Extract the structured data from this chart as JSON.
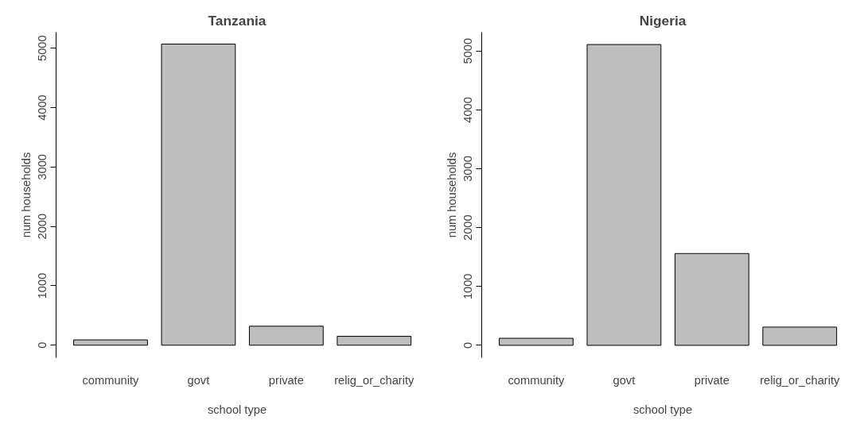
{
  "chart_data": [
    {
      "type": "bar",
      "title": "Tanzania",
      "xlabel": "school type",
      "ylabel": "num households",
      "categories": [
        "community",
        "govt",
        "private",
        "relig_or_charity"
      ],
      "values": [
        90,
        5070,
        320,
        150
      ],
      "color": "#bebebe",
      "ylim": [
        -210,
        5270
      ],
      "yticks": [
        0,
        1000,
        2000,
        3000,
        4000,
        5000
      ],
      "grid": false,
      "legend": false
    },
    {
      "type": "bar",
      "title": "Nigeria",
      "xlabel": "school type",
      "ylabel": "num households",
      "categories": [
        "community",
        "govt",
        "private",
        "relig_or_charity"
      ],
      "values": [
        120,
        5110,
        1560,
        310
      ],
      "color": "#bebebe",
      "ylim": [
        -210,
        5320
      ],
      "yticks": [
        0,
        1000,
        2000,
        3000,
        4000,
        5000
      ],
      "grid": false,
      "legend": false
    }
  ]
}
